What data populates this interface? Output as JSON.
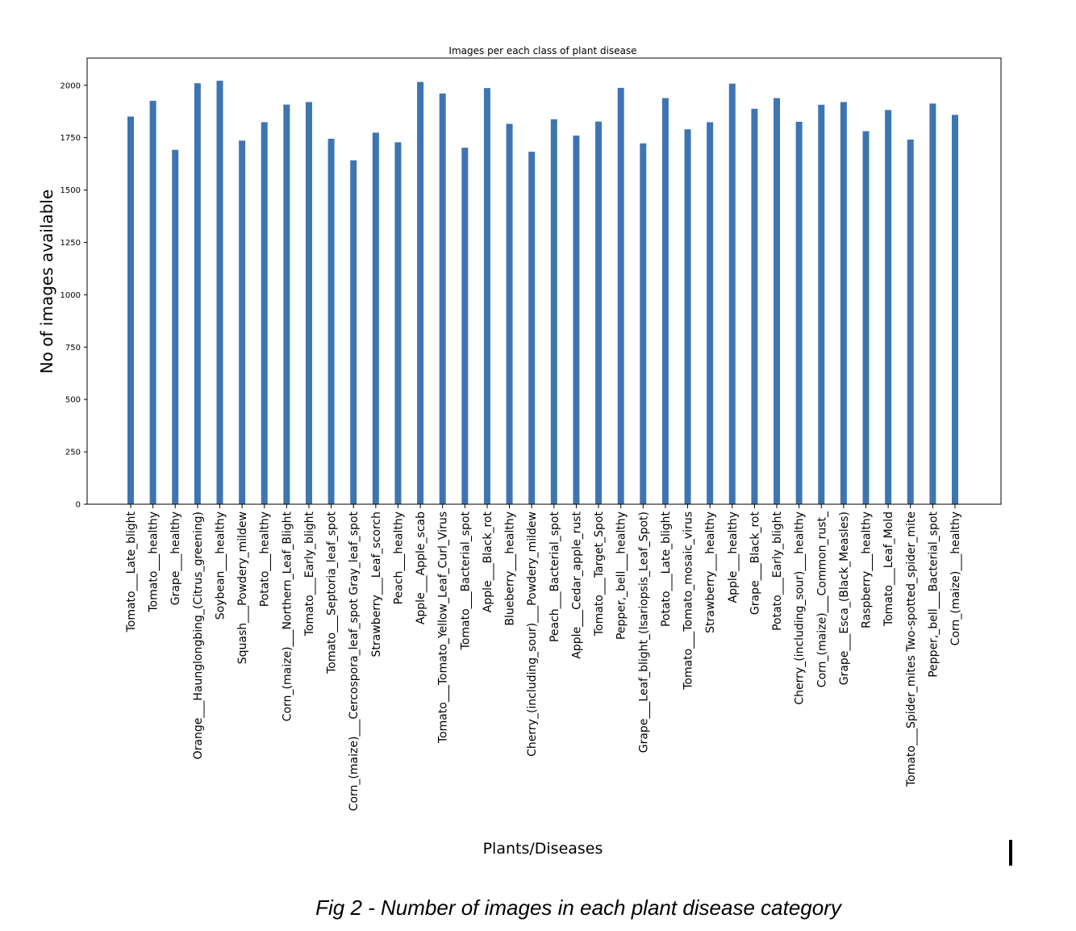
{
  "chart_data": {
    "type": "bar",
    "title": "Images per each class of plant disease",
    "xlabel": "Plants/Diseases",
    "ylabel": "No of images available",
    "ylim": [
      0,
      2130
    ],
    "yticks": [
      0,
      250,
      500,
      750,
      1000,
      1250,
      1500,
      1750,
      2000
    ],
    "grid": false,
    "color": "#3d75b3",
    "categories": [
      "Tomato___Late_blight",
      "Tomato___healthy",
      "Grape___healthy",
      "Orange___Haunglongbing_(Citrus_greening)",
      "Soybean___healthy",
      "Squash___Powdery_mildew",
      "Potato___healthy",
      "Corn_(maize)___Northern_Leaf_Blight",
      "Tomato___Early_blight",
      "Tomato___Septoria_leaf_spot",
      "Corn_(maize)___Cercospora_leaf_spot Gray_leaf_spot",
      "Strawberry___Leaf_scorch",
      "Peach___healthy",
      "Apple___Apple_scab",
      "Tomato___Tomato_Yellow_Leaf_Curl_Virus",
      "Tomato___Bacterial_spot",
      "Apple___Black_rot",
      "Blueberry___healthy",
      "Cherry_(including_sour)___Powdery_mildew",
      "Peach___Bacterial_spot",
      "Apple___Cedar_apple_rust",
      "Tomato___Target_Spot",
      "Pepper,_bell___healthy",
      "Grape___Leaf_blight_(Isariopsis_Leaf_Spot)",
      "Potato___Late_blight",
      "Tomato___Tomato_mosaic_virus",
      "Strawberry___healthy",
      "Apple___healthy",
      "Grape___Black_rot",
      "Potato___Early_blight",
      "Cherry_(including_sour)___healthy",
      "Corn_(maize)___Common_rust_",
      "Grape___Esca_(Black_Measles)",
      "Raspberry___healthy",
      "Tomato___Leaf_Mold",
      "Tomato___Spider_mites Two-spotted_spider_mite",
      "Pepper,_bell___Bacterial_spot",
      "Corn_(maize)___healthy"
    ],
    "values": [
      1851,
      1926,
      1692,
      2010,
      2022,
      1736,
      1824,
      1908,
      1920,
      1745,
      1642,
      1774,
      1728,
      2016,
      1961,
      1702,
      1987,
      1816,
      1683,
      1838,
      1760,
      1827,
      1988,
      1723,
      1939,
      1790,
      1824,
      2008,
      1888,
      1939,
      1826,
      1907,
      1920,
      1781,
      1882,
      1741,
      1913,
      1859
    ]
  },
  "caption": "Fig 2 - Number of images in each plant disease category"
}
